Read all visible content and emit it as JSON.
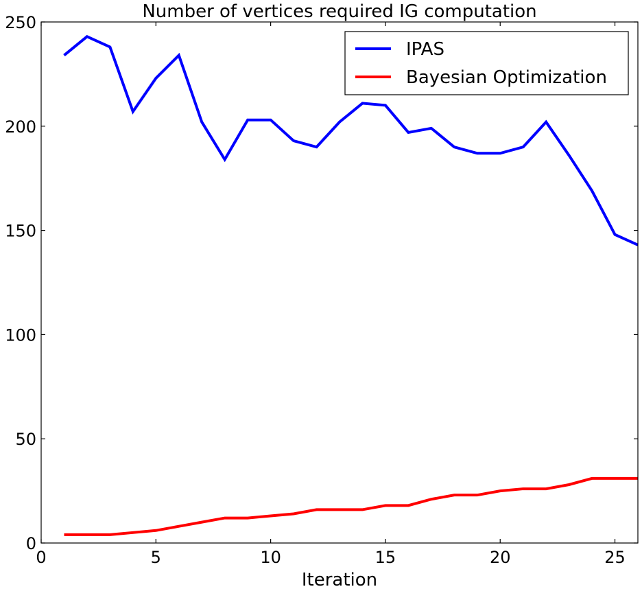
{
  "chart_data": {
    "type": "line",
    "title": "Number of vertices required IG computation",
    "xlabel": "Iteration",
    "ylabel": "",
    "xlim": [
      0,
      26
    ],
    "ylim": [
      0,
      250
    ],
    "xticks": [
      0,
      5,
      10,
      15,
      20,
      25
    ],
    "yticks": [
      0,
      50,
      100,
      150,
      200,
      250
    ],
    "grid": false,
    "legend_position": "top-right",
    "x": [
      1,
      2,
      3,
      4,
      5,
      6,
      7,
      8,
      9,
      10,
      11,
      12,
      13,
      14,
      15,
      16,
      17,
      18,
      19,
      20,
      21,
      22,
      23,
      24,
      25,
      26
    ],
    "series": [
      {
        "name": "IPAS",
        "color": "#0000ff",
        "values": [
          234,
          243,
          238,
          207,
          223,
          234,
          202,
          184,
          203,
          203,
          193,
          190,
          202,
          211,
          210,
          197,
          199,
          190,
          187,
          187,
          190,
          202,
          186,
          169,
          148,
          143
        ]
      },
      {
        "name": "Bayesian Optimization",
        "color": "#ff0000",
        "values": [
          4,
          4,
          4,
          5,
          6,
          8,
          10,
          12,
          12,
          13,
          14,
          16,
          16,
          16,
          18,
          18,
          21,
          23,
          23,
          25,
          26,
          26,
          28,
          31,
          31,
          31
        ]
      }
    ]
  }
}
